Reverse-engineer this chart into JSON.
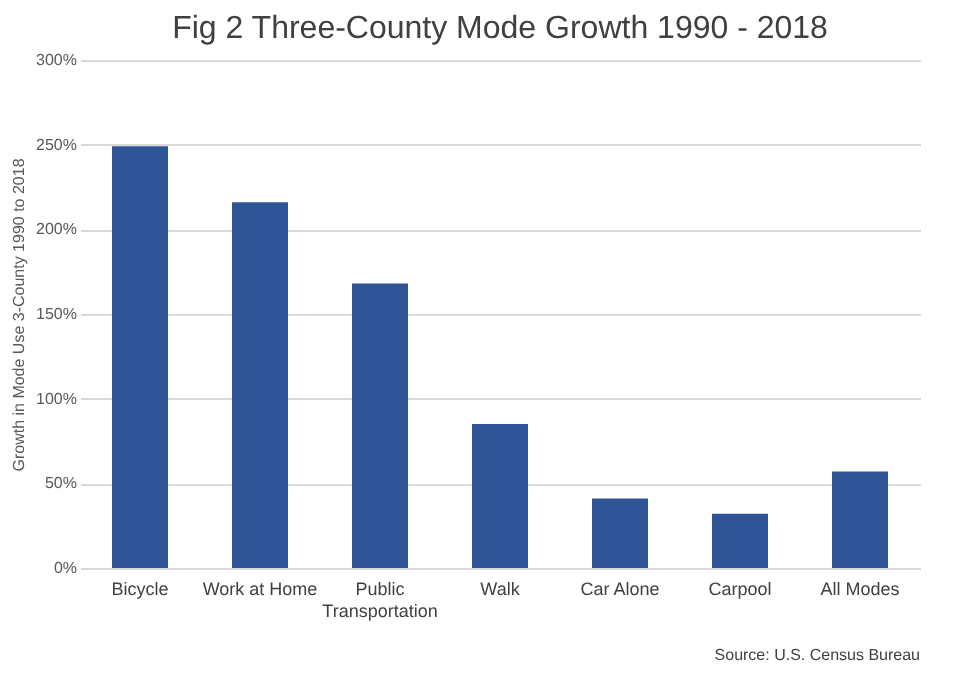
{
  "chart_data": {
    "type": "bar",
    "title": "Fig 2 Three-County Mode Growth 1990 - 2018",
    "ylabel": "Growth in Mode Use 3-County 1990 to 2018",
    "categories": [
      "Bicycle",
      "Work at Home",
      "Public Transportation",
      "Walk",
      "Car Alone",
      "Carpool",
      "All Modes"
    ],
    "values": [
      249,
      216,
      168,
      85,
      41,
      32,
      57
    ],
    "color": "#2f5597",
    "ylim": [
      0,
      300
    ],
    "yticks": [
      {
        "value": 0,
        "label": "0%"
      },
      {
        "value": 50,
        "label": "50%"
      },
      {
        "value": 100,
        "label": "100%"
      },
      {
        "value": 150,
        "label": "150%"
      },
      {
        "value": 200,
        "label": "200%"
      },
      {
        "value": 250,
        "label": "250%"
      },
      {
        "value": 300,
        "label": "300%"
      }
    ],
    "grid": "y",
    "annotations": [
      "Source: U.S. Census Bureau"
    ]
  }
}
